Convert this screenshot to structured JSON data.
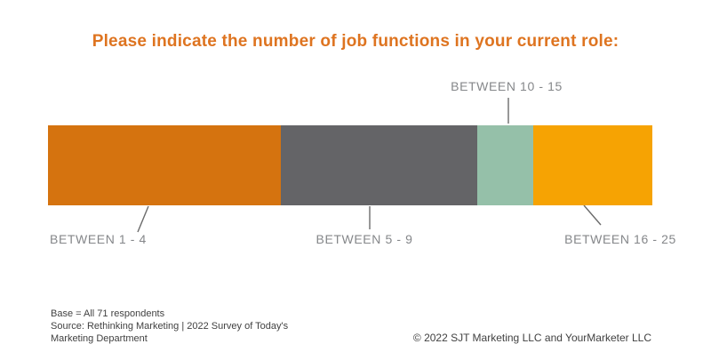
{
  "title": "Please indicate the number of job functions in your current role:",
  "chart_data": {
    "type": "bar",
    "subtype": "horizontal-stacked-single-bar",
    "title": "Please indicate the number of job functions in your current role:",
    "legend_position": "leader-line-labels",
    "grid": false,
    "axes_shown": false,
    "base_n": 71,
    "segments": [
      {
        "label": "BETWEEN 1 - 4",
        "color": "#d5730f",
        "share_pct_est": 38.5,
        "respondents_est": 27,
        "label_position": "below"
      },
      {
        "label": "BETWEEN 5 - 9",
        "color": "#646467",
        "share_pct_est": 32.5,
        "respondents_est": 23,
        "label_position": "below"
      },
      {
        "label": "BETWEEN 10 - 15",
        "color": "#95c0a9",
        "share_pct_est": 9.3,
        "respondents_est": 7,
        "label_position": "above"
      },
      {
        "label": "BETWEEN 16 - 25",
        "color": "#f6a303",
        "share_pct_est": 19.7,
        "respondents_est": 14,
        "label_position": "below"
      }
    ]
  },
  "footer": {
    "base_note": "Base = All 71 respondents",
    "source_line1": "Source: Rethinking Marketing | 2022 Survey of Today's",
    "source_line2": "Marketing Department",
    "copyright": "© 2022 SJT Marketing LLC and YourMarketer LLC"
  },
  "colors": {
    "title": "#de7420",
    "label_gray": "#85878a",
    "leader_line": "#6b6b6b",
    "footer_text": "#414141",
    "background": "#ffffff"
  }
}
